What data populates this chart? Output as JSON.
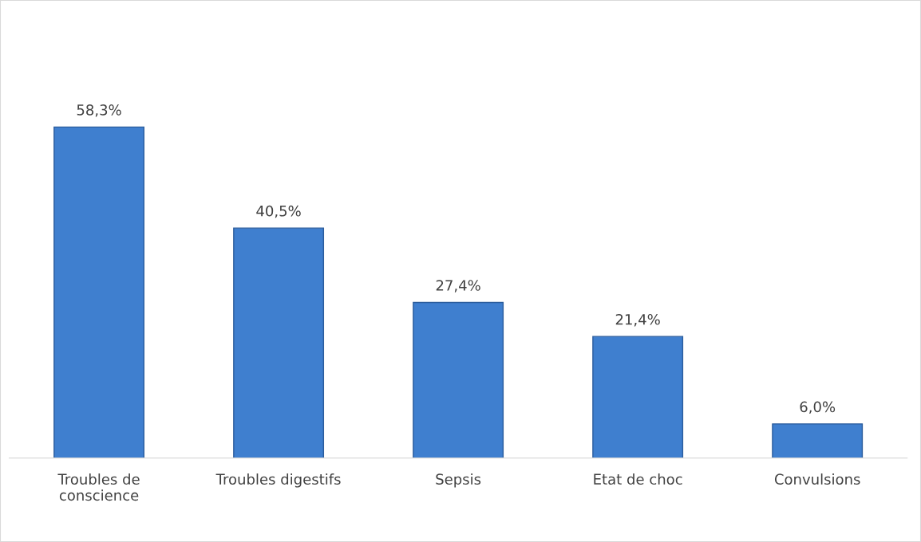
{
  "chart_data": {
    "type": "bar",
    "categories": [
      "Troubles de\nconscience",
      "Troubles digestifs",
      "Sepsis",
      "Etat de choc",
      "Convulsions"
    ],
    "values": [
      58.3,
      40.5,
      27.4,
      21.4,
      6.0
    ],
    "value_labels": [
      "58,3%",
      "40,5%",
      "27,4%",
      "21,4%",
      "6,0%"
    ],
    "color": "#3f7fcf",
    "grid": false,
    "legend": false
  }
}
